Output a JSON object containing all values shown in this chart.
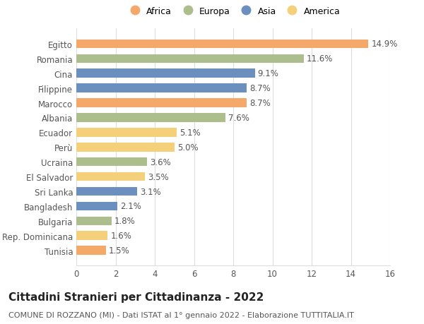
{
  "categories": [
    "Egitto",
    "Romania",
    "Cina",
    "Filippine",
    "Marocco",
    "Albania",
    "Ecuador",
    "Perù",
    "Ucraina",
    "El Salvador",
    "Sri Lanka",
    "Bangladesh",
    "Bulgaria",
    "Rep. Dominicana",
    "Tunisia"
  ],
  "values": [
    14.9,
    11.6,
    9.1,
    8.7,
    8.7,
    7.6,
    5.1,
    5.0,
    3.6,
    3.5,
    3.1,
    2.1,
    1.8,
    1.6,
    1.5
  ],
  "continents": [
    "Africa",
    "Europa",
    "Asia",
    "Asia",
    "Africa",
    "Europa",
    "America",
    "America",
    "Europa",
    "America",
    "Asia",
    "Asia",
    "Europa",
    "America",
    "Africa"
  ],
  "colors": {
    "Africa": "#F4A96A",
    "Europa": "#ABBE8B",
    "Asia": "#6B8FBF",
    "America": "#F5D07A"
  },
  "legend_order": [
    "Africa",
    "Europa",
    "Asia",
    "America"
  ],
  "title": "Cittadini Stranieri per Cittadinanza - 2022",
  "subtitle": "COMUNE DI ROZZANO (MI) - Dati ISTAT al 1° gennaio 2022 - Elaborazione TUTTITALIA.IT",
  "xlim": [
    0,
    16
  ],
  "xticks": [
    0,
    2,
    4,
    6,
    8,
    10,
    12,
    14,
    16
  ],
  "background_color": "#ffffff",
  "grid_color": "#dddddd",
  "bar_height": 0.6,
  "label_fontsize": 8.5,
  "title_fontsize": 11,
  "subtitle_fontsize": 8,
  "tick_fontsize": 8.5
}
